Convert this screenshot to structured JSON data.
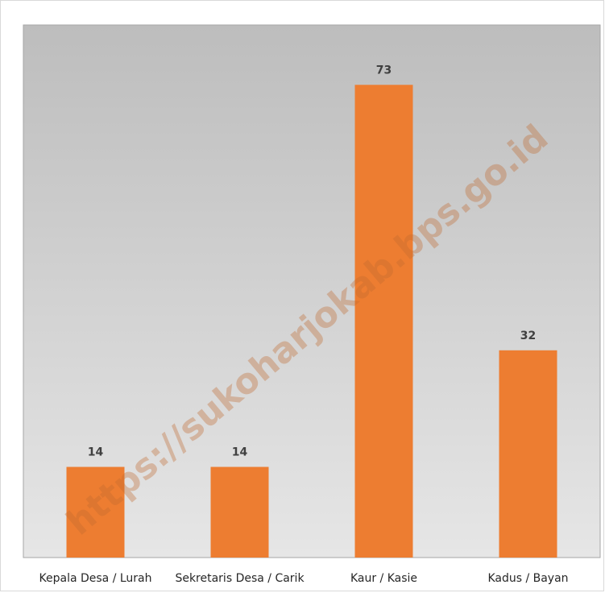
{
  "chart_data": {
    "type": "bar",
    "categories": [
      "Kepala Desa / Lurah",
      "Sekretaris Desa / Carik",
      "Kaur / Kasie",
      "Kadus / Bayan"
    ],
    "values": [
      14,
      14,
      73,
      32
    ],
    "title": "",
    "xlabel": "",
    "ylabel": "",
    "ylim": [
      0,
      80
    ],
    "grid": false,
    "legend": "none",
    "colors": {
      "bar": "#ed7d31",
      "plot_background_top": "#bdbdbd",
      "plot_background_bottom": "#e6e6e6"
    }
  },
  "watermark": "https://sukoharjokab.bps.go.id"
}
